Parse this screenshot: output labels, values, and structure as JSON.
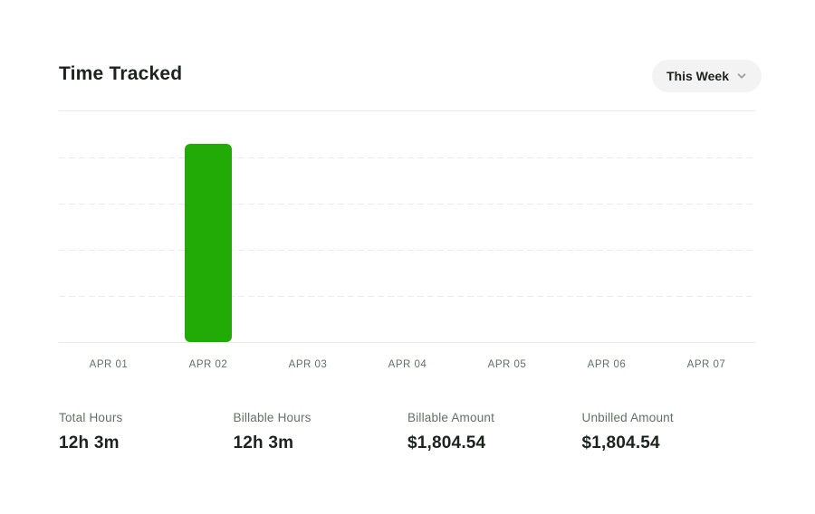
{
  "header": {
    "title": "Time Tracked",
    "range_selector": {
      "label": "This Week",
      "icon": "chevron-down-icon"
    }
  },
  "chart_data": {
    "type": "bar",
    "title": "Time Tracked",
    "categories": [
      "APR 01",
      "APR 02",
      "APR 03",
      "APR 04",
      "APR 05",
      "APR 06",
      "APR 07"
    ],
    "values": [
      0,
      12.05,
      0,
      0,
      0,
      0,
      0
    ],
    "values_unit": "hours",
    "xlabel": "",
    "ylabel": "",
    "ylim": [
      0,
      14
    ],
    "grid": "horizontal-dashed",
    "legend": "none",
    "bar_color": "#22aa06"
  },
  "stats": [
    {
      "label": "Total Hours",
      "value": "12h 3m"
    },
    {
      "label": "Billable Hours",
      "value": "12h 3m"
    },
    {
      "label": "Billable Amount",
      "value": "$1,804.54"
    },
    {
      "label": "Unbilled Amount",
      "value": "$1,804.54"
    }
  ],
  "colors": {
    "background": "#ffffff",
    "title_text": "#1c231f",
    "muted_text": "#5e7464",
    "bar_green": "#22aa06",
    "pill_background": "#f2f3f2",
    "gridline": "#ececec",
    "axis_line": "#e9ebe7",
    "chevron": "#9aa39c"
  }
}
